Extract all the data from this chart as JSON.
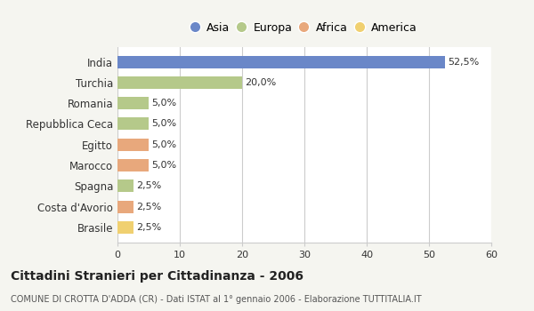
{
  "categories": [
    "India",
    "Turchia",
    "Romania",
    "Repubblica Ceca",
    "Egitto",
    "Marocco",
    "Spagna",
    "Costa d'Avorio",
    "Brasile"
  ],
  "values": [
    52.5,
    20.0,
    5.0,
    5.0,
    5.0,
    5.0,
    2.5,
    2.5,
    2.5
  ],
  "colors": [
    "#6a87c8",
    "#b5c98a",
    "#b5c98a",
    "#b5c98a",
    "#e8a87c",
    "#e8a87c",
    "#b5c98a",
    "#e8a87c",
    "#f0d070"
  ],
  "labels": [
    "52,5%",
    "20,0%",
    "5,0%",
    "5,0%",
    "5,0%",
    "5,0%",
    "2,5%",
    "2,5%",
    "2,5%"
  ],
  "legend": [
    {
      "label": "Asia",
      "color": "#6a87c8"
    },
    {
      "label": "Europa",
      "color": "#b5c98a"
    },
    {
      "label": "Africa",
      "color": "#e8a87c"
    },
    {
      "label": "America",
      "color": "#f0d070"
    }
  ],
  "xlim": [
    0,
    60
  ],
  "xticks": [
    0,
    10,
    20,
    30,
    40,
    50,
    60
  ],
  "title": "Cittadini Stranieri per Cittadinanza - 2006",
  "subtitle": "COMUNE DI CROTTA D'ADDA (CR) - Dati ISTAT al 1° gennaio 2006 - Elaborazione TUTTITALIA.IT",
  "background_color": "#f5f5f0",
  "bar_bg_color": "#ffffff",
  "grid_color": "#cccccc"
}
